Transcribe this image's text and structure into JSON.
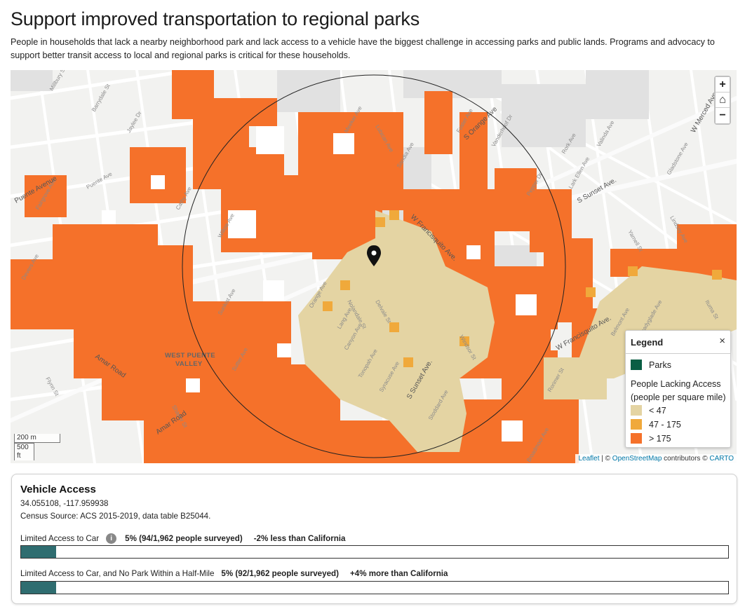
{
  "page": {
    "title": "Support improved transportation to regional parks",
    "intro": "People in households that lack a nearby neighborhood park and lack access to a vehicle have the biggest challenge in accessing parks and public lands. Programs and advocacy to support better transit access to local and regional parks is critical for these households."
  },
  "map": {
    "controls": {
      "zoom_in": "+",
      "home": "⌂",
      "zoom_out": "−"
    },
    "scale": {
      "metric": "200 m",
      "imperial": "500 ft"
    },
    "attribution": {
      "leaflet": "Leaflet",
      "separator": " | © ",
      "osm": "OpenStreetMap",
      "contributors": " contributors © ",
      "carto": "CARTO"
    },
    "place_labels": [
      "WEST PUENTE",
      "VALLEY"
    ],
    "road_labels": [
      "Puente Avenue",
      "Amar Road",
      "Amar Road",
      "S Sunset Ave.",
      "W Francisquito Ave.",
      "S Sunset Ave.",
      "W Merced Ave",
      "S Orange Ave",
      "W Francisquito Ave."
    ],
    "street_labels": [
      "Millbury St",
      "Barrydale St",
      "Jaylee Dr",
      "Cathy Ave",
      "Puente Ave",
      "Willow Ave",
      "Orange Ave",
      "Lang Ave",
      "Delvale St",
      "Nolandale St",
      "Canyon Ave",
      "Tonopah Ave",
      "Syracuse Ave",
      "Windsor St",
      "Stoddard Ave",
      "Meeker Ave",
      "Sandia Ave",
      "Pepper Dr",
      "Lindsey Ave",
      "Valinda Ave",
      "Lark Ellen Ave",
      "Vanderhoof Dr",
      "Rork Ave",
      "Shadyglade Ave",
      "Gladstone Ave",
      "Yarnell St",
      "Belmont Ave",
      "Ituma St",
      "Rorimer St",
      "Foster Ave",
      "Lubican Ave",
      "Broadmoor Ave",
      "Sunkist Ave",
      "Fairgrove Ave",
      "Devers Ave",
      "Flynn St",
      "Shaper St",
      "Sutter Ave"
    ],
    "marker": "location-pin-icon",
    "colors": {
      "parks": "#0a5e44",
      "low": "#e4d4a3",
      "mid": "#f0a93b",
      "high": "#f5712a",
      "basemap": "#f2f2f0"
    }
  },
  "legend": {
    "title": "Legend",
    "close": "×",
    "parks_label": "Parks",
    "heading": "People Lacking Access (people per square mile)",
    "classes": [
      {
        "label": "< 47",
        "color": "#e4d4a3"
      },
      {
        "label": "47 - 175",
        "color": "#f0a93b"
      },
      {
        "label": "> 175",
        "color": "#f5712a"
      }
    ]
  },
  "panel": {
    "title": "Vehicle Access",
    "coordinates": "34.055108, -117.959938",
    "source": "Census Source: ACS 2015-2019, data table B25044.",
    "metrics": [
      {
        "label": "Limited Access to Car",
        "value": "5% (94/1,962 people surveyed)",
        "compare": "-2% less than California",
        "fraction": 0.05,
        "has_info": true
      },
      {
        "label": "Limited Access to Car, and No Park Within a Half-Mile",
        "value": "5% (92/1,962 people surveyed)",
        "compare": "+4% more than California",
        "fraction": 0.05,
        "has_info": false
      }
    ],
    "bar_color": "#2f6d70",
    "info_icon": "info-icon"
  }
}
